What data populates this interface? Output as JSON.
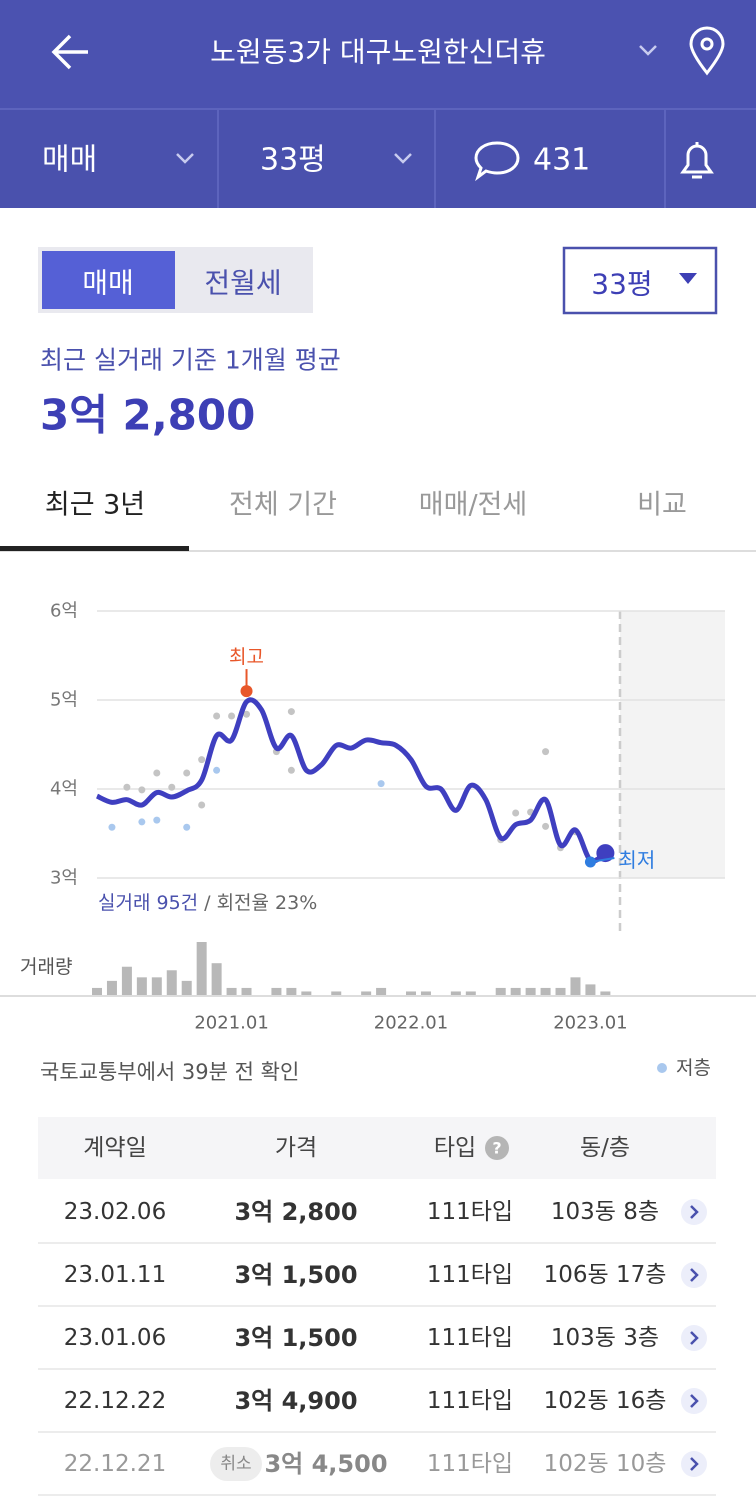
{
  "header": {
    "title": "노원동3가 대구노원한신더휴"
  },
  "toolbar": {
    "deal_type": "매매",
    "size": "33평",
    "comments": 431
  },
  "toggle": {
    "options": [
      "매매",
      "전월세"
    ],
    "size": "33평"
  },
  "summary": {
    "label": "최근 실거래 기준 1개월 평균",
    "price": "3억 2,800"
  },
  "tabs": [
    "최근 3년",
    "전체 기간",
    "매매/전세",
    "비교"
  ],
  "chart_data": {
    "type": "line",
    "color": "#3f3fc0",
    "ylim": [
      3,
      6
    ],
    "yticks": [
      {
        "value": 6,
        "label": "6억"
      },
      {
        "value": 5,
        "label": "5억"
      },
      {
        "value": 4,
        "label": "4억"
      },
      {
        "value": 3,
        "label": "3억"
      }
    ],
    "xlim": [
      "2020.04",
      "2023.10"
    ],
    "xticks": [
      "2021.01",
      "2022.01",
      "2023.01"
    ],
    "x": [
      "2020.04",
      "2020.05",
      "2020.06",
      "2020.07",
      "2020.08",
      "2020.09",
      "2020.10",
      "2020.11",
      "2020.12",
      "2021.01",
      "2021.02",
      "2021.03",
      "2021.04",
      "2021.05",
      "2021.06",
      "2021.07",
      "2021.08",
      "2021.09",
      "2021.10",
      "2021.11",
      "2021.12",
      "2022.01",
      "2022.02",
      "2022.03",
      "2022.04",
      "2022.05",
      "2022.06",
      "2022.07",
      "2022.08",
      "2022.09",
      "2022.10",
      "2022.11",
      "2022.12",
      "2023.01",
      "2023.02"
    ],
    "values": [
      3.92,
      3.85,
      3.88,
      3.82,
      3.96,
      3.91,
      3.98,
      4.1,
      4.6,
      4.55,
      4.98,
      4.89,
      4.46,
      4.6,
      4.21,
      4.27,
      4.49,
      4.46,
      4.55,
      4.52,
      4.49,
      4.33,
      4.03,
      4.0,
      3.76,
      4.04,
      3.88,
      3.45,
      3.6,
      3.65,
      3.88,
      3.37,
      3.54,
      3.2,
      3.28
    ],
    "volume_label": "거래량",
    "volume_color": "#b8b8b8",
    "volume": [
      2,
      4,
      8,
      5,
      5,
      7,
      4,
      15,
      9,
      2,
      2,
      0,
      2,
      2,
      1,
      0,
      1,
      0,
      1,
      2,
      0,
      1,
      1,
      0,
      1,
      1,
      0,
      2,
      2,
      2,
      2,
      2,
      5,
      3,
      1
    ],
    "transactions": {
      "color": "#c4c4c4",
      "x": [
        "2020.06",
        "2020.07",
        "2020.08",
        "2020.09",
        "2020.10",
        "2020.11",
        "2020.11",
        "2020.12",
        "2021.01",
        "2021.02",
        "2021.04",
        "2021.05",
        "2021.05",
        "2022.07",
        "2022.08",
        "2022.09",
        "2022.10",
        "2022.10",
        "2022.11",
        "2022.12"
      ],
      "values": [
        4.02,
        3.99,
        4.18,
        4.02,
        4.18,
        4.33,
        3.82,
        4.82,
        4.82,
        4.84,
        4.42,
        4.87,
        4.21,
        3.43,
        3.73,
        3.74,
        4.42,
        3.58,
        3.34,
        3.52
      ]
    },
    "low_floor": {
      "name": "저층",
      "color": "#a9c8ee",
      "x": [
        "2020.05",
        "2020.07",
        "2020.08",
        "2020.10",
        "2020.12",
        "2021.11",
        "2023.01"
      ],
      "values": [
        3.57,
        3.63,
        3.65,
        3.57,
        4.21,
        4.06,
        3.18
      ]
    },
    "high": {
      "label": "최고",
      "x": "2021.02",
      "value": 5.1,
      "color": "#e8572a"
    },
    "low": {
      "label": "최저",
      "x": "2023.01",
      "value": 3.18,
      "color": "#2f7de0"
    },
    "caption": [
      "실거래 95건",
      "/ 회전율 23%"
    ]
  },
  "source": "국토교통부에서 39분 전 확인",
  "table": {
    "header": [
      "계약일",
      "가격",
      "타입",
      "동/층"
    ],
    "rows": [
      {
        "date": "23.02.06",
        "price": "3억 2,800",
        "type": "111타입",
        "unit": "103동 8층"
      },
      {
        "date": "23.01.11",
        "price": "3억 1,500",
        "type": "111타입",
        "unit": "106동 17층"
      },
      {
        "date": "23.01.06",
        "price": "3억 1,500",
        "type": "111타입",
        "unit": "103동 3층"
      },
      {
        "date": "22.12.22",
        "price": "3억 4,900",
        "type": "111타입",
        "unit": "102동 16층"
      },
      {
        "date": "22.12.21",
        "price": "3억 4,500",
        "type": "111타입",
        "unit": "102동 10층",
        "status": "취소"
      }
    ]
  }
}
